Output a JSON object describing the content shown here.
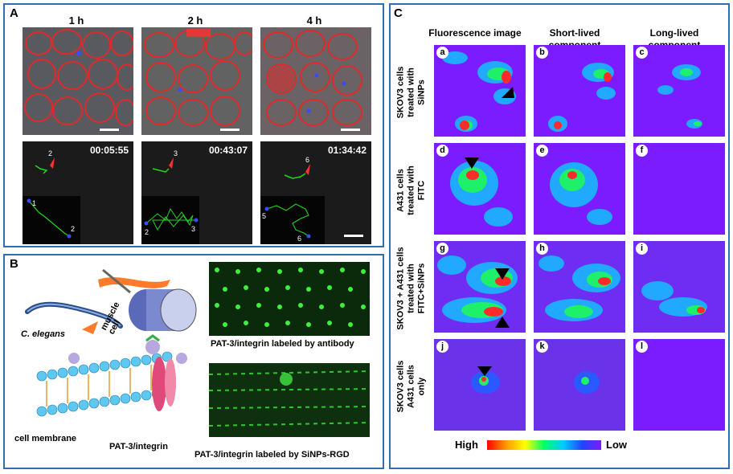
{
  "panel_a": {
    "letter": "A",
    "columns": [
      "1 h",
      "2 h",
      "4 h"
    ],
    "timestamps": [
      "00:05:55",
      "00:43:07",
      "01:34:42"
    ],
    "red_arrow_labels": [
      "2",
      "3",
      "6"
    ],
    "inset_labels": [
      [
        "1",
        "2"
      ],
      [
        "2",
        "3"
      ],
      [
        "5",
        "6"
      ]
    ]
  },
  "panel_b": {
    "letter": "B",
    "organism_label": "C. elegans",
    "muscle_label": "muscle\ncell",
    "membrane_label": "cell membrane",
    "protein_label": "PAT-3/integrin",
    "caption_top": "PAT-3/integrin labeled by antibody",
    "caption_bottom": "PAT-3/integrin labeled by SiNPs-RGD"
  },
  "panel_c": {
    "letter": "C",
    "column_headers": [
      "Fluorescence image",
      "Short-lived component",
      "Long-lived component"
    ],
    "row_labels": [
      "SKOV3 cells\ntreated with\nSiNPs",
      "A431 cells\ntreated with\nFITC",
      "SKOV3 + A431 cells\ntreated with\nFITC+SiNPs",
      "SKOV3 cells\nA431 cells\nonly"
    ],
    "cell_tags": [
      "a",
      "b",
      "c",
      "d",
      "e",
      "f",
      "g",
      "h",
      "i",
      "j",
      "k",
      "l"
    ],
    "legend_high": "High",
    "legend_low": "Low"
  },
  "colors": {
    "panel_border": "#2d6fb0",
    "background_low": "#7a1cff",
    "track_green": "#1fd61f"
  }
}
